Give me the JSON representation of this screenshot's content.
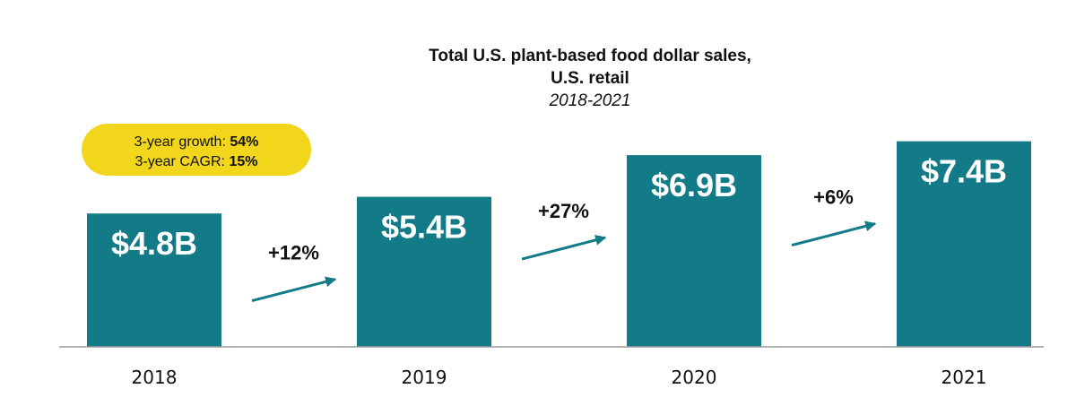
{
  "chart_data": {
    "type": "bar",
    "title_line1": "Total U.S. plant-based food dollar sales,",
    "title_line2": "U.S. retail",
    "subtitle": "2018-2021",
    "categories": [
      "2018",
      "2019",
      "2020",
      "2021"
    ],
    "values": [
      4.8,
      5.4,
      6.9,
      7.4
    ],
    "unit": "billion USD",
    "data_labels": [
      "$4.8B",
      "$5.4B",
      "$6.9B",
      "$7.4B"
    ],
    "growth_labels": [
      "+12%",
      "+27%",
      "+6%"
    ],
    "callout": {
      "growth_label": "3-year growth: ",
      "growth_value": "54%",
      "cagr_label": "3-year CAGR: ",
      "cagr_value": "15%"
    },
    "bar_color": "#137b87",
    "callout_color": "#f2d61b",
    "grid": false
  }
}
